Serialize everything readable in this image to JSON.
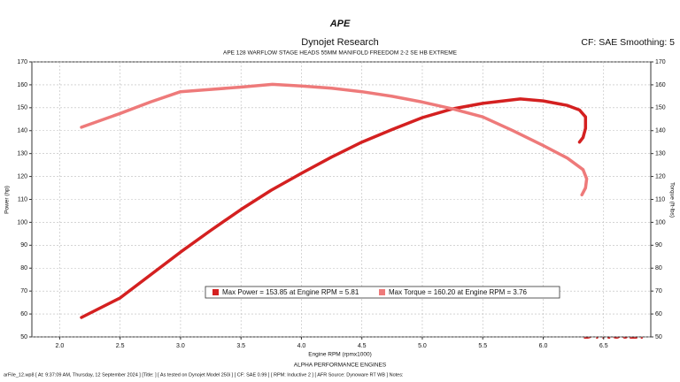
{
  "chart_data": {
    "type": "line",
    "logo": "APE",
    "title": "Dynojet Research",
    "subtitle": "APE 128 WARFLOW STAGE HEADS 55MM MANIFOLD FREEDOM 2-2 SE HB EXTREME",
    "cf_label": "CF: SAE Smoothing: 5",
    "x_label": "Engine RPM (rpmx1000)",
    "y_label": "Power (hp)",
    "y2_label": "Torque (ft-lbs)",
    "bottom_title": "ALPHA PERFORMANCE ENGINES",
    "brand": "DYNOJET",
    "footer": "arFile_12.wp8 [ At: 9:37:09 AM, Thursday, 12 September 2024 ] [Title: ] [ As tested on Dynojet Model 250i ] [ CF: SAE 0.99 ] [ RPM: Inductive 2 ] [ AFR Source: Dynoware RT WB ] Notes:",
    "xlim": [
      1.77,
      6.89
    ],
    "xticks": [
      {
        "value": 2,
        "label": "2.0"
      },
      {
        "value": 2.5,
        "label": "2.5"
      },
      {
        "value": 3,
        "label": "3.0"
      },
      {
        "value": 3.5,
        "label": "3.5"
      },
      {
        "value": 4,
        "label": "4.0"
      },
      {
        "value": 4.5,
        "label": "4.5"
      },
      {
        "value": 5,
        "label": "5.0"
      },
      {
        "value": 5.5,
        "label": "5.5"
      },
      {
        "value": 6,
        "label": "6.0"
      },
      {
        "value": 6.5,
        "label": "6.5"
      }
    ],
    "ylim": [
      50,
      170
    ],
    "yticks": [
      50,
      60,
      70,
      80,
      90,
      100,
      110,
      120,
      130,
      140,
      150,
      160,
      170
    ],
    "y2lim": [
      50,
      170
    ],
    "y2ticks": [
      50,
      60,
      70,
      80,
      90,
      100,
      110,
      120,
      130,
      140,
      150,
      160,
      170
    ],
    "grid": true,
    "series": [
      {
        "name": "Max Power = 153.85 at Engine RPM = 5.81",
        "color": "#d42020",
        "x": [
          2.18,
          2.5,
          2.75,
          3.0,
          3.25,
          3.5,
          3.75,
          4.0,
          4.25,
          4.5,
          4.75,
          5.0,
          5.25,
          5.5,
          5.81,
          6.0,
          6.2,
          6.3,
          6.35,
          6.35,
          6.33,
          6.3
        ],
        "values": [
          58.5,
          67,
          77,
          87,
          96.5,
          105.6,
          114,
          121.4,
          128.5,
          135,
          140.5,
          145.7,
          149.5,
          151.9,
          153.85,
          153,
          151,
          149,
          146,
          141,
          137,
          135
        ]
      },
      {
        "name": "Max Torque = 160.20 at Engine RPM = 3.76",
        "color": "#ee7a7a",
        "axis": "y2",
        "x": [
          2.18,
          2.5,
          2.75,
          3.0,
          3.25,
          3.5,
          3.76,
          4.0,
          4.25,
          4.5,
          4.75,
          5.0,
          5.25,
          5.5,
          5.75,
          6.0,
          6.2,
          6.33,
          6.36,
          6.35,
          6.32
        ],
        "values": [
          141.5,
          147.5,
          152.5,
          157,
          158,
          159,
          160.2,
          159.5,
          158.5,
          157,
          155,
          152.5,
          149.5,
          146,
          140,
          133.5,
          128,
          123,
          119,
          115,
          112
        ]
      }
    ]
  }
}
